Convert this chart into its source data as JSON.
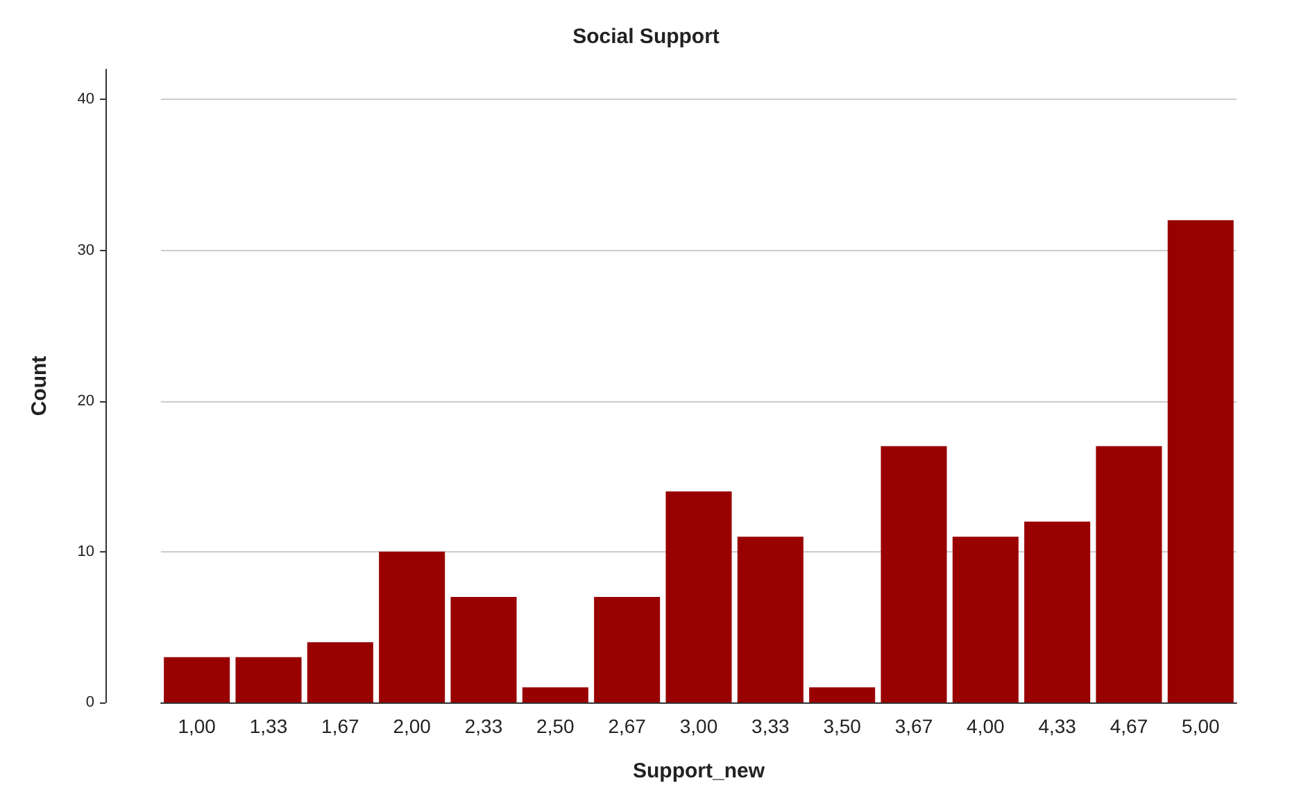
{
  "chart_data": {
    "type": "bar",
    "title": "Social Support",
    "xlabel": "Support_new",
    "ylabel": "Count",
    "categories": [
      "1,00",
      "1,33",
      "1,67",
      "2,00",
      "2,33",
      "2,50",
      "2,67",
      "3,00",
      "3,33",
      "3,50",
      "3,67",
      "4,00",
      "4,33",
      "4,67",
      "5,00"
    ],
    "values": [
      3,
      3,
      4,
      10,
      7,
      1,
      7,
      14,
      11,
      1,
      17,
      11,
      12,
      17,
      32
    ],
    "color": "#990000",
    "ylim": [
      0,
      42
    ],
    "yticks": [
      0,
      10,
      20,
      30,
      40
    ],
    "grid": "y"
  }
}
